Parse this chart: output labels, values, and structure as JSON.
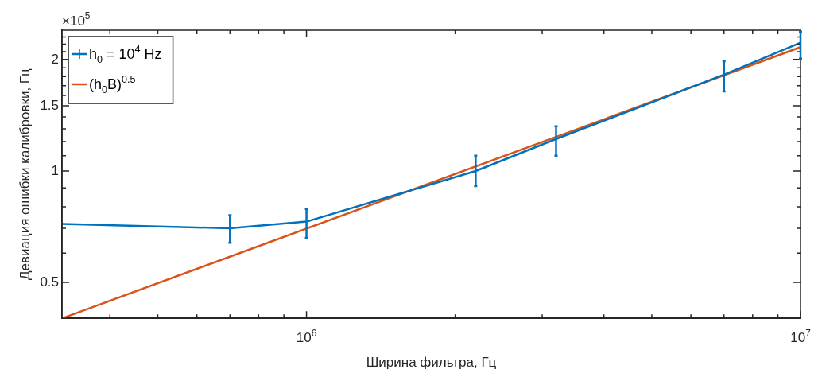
{
  "chart_data": {
    "type": "line",
    "xlabel": "Ширина фильтра, Гц",
    "ylabel": "Девиация ошибки калибровки, Гц",
    "annotations": [
      "×10$^{5}$"
    ],
    "log": "xy",
    "grid": false,
    "legend": "top left",
    "marker": "none",
    "line_style": "solid",
    "xlim": [
      320000,
      10000000
    ],
    "xticks": [
      {
        "value": 400000,
        "label": null
      },
      {
        "value": 500000,
        "label": null
      },
      {
        "value": 600000,
        "label": null
      },
      {
        "value": 700000,
        "label": null
      },
      {
        "value": 800000,
        "label": null
      },
      {
        "value": 900000,
        "label": null
      },
      {
        "value": 1000000,
        "label": "10$^{6}$"
      },
      {
        "value": 2000000,
        "label": null
      },
      {
        "value": 3000000,
        "label": null
      },
      {
        "value": 4000000,
        "label": null
      },
      {
        "value": 5000000,
        "label": null
      },
      {
        "value": 6000000,
        "label": null
      },
      {
        "value": 7000000,
        "label": null
      },
      {
        "value": 8000000,
        "label": null
      },
      {
        "value": 9000000,
        "label": null
      },
      {
        "value": 10000000,
        "label": "10$^{7}$"
      }
    ],
    "ylim": [
      0.4,
      2.4
    ],
    "yticks": [
      0.5,
      {
        "value": 0.6,
        "label": null
      },
      {
        "value": 0.7,
        "label": null
      },
      {
        "value": 0.8,
        "label": null
      },
      {
        "value": 0.9,
        "label": null
      },
      1,
      {
        "value": 1.1,
        "label": null
      },
      {
        "value": 1.2,
        "label": null
      },
      {
        "value": 1.3,
        "label": null
      },
      {
        "value": 1.4,
        "label": null
      },
      1.5,
      {
        "value": 1.6,
        "label": null
      },
      {
        "value": 1.7,
        "label": null
      },
      {
        "value": 1.8,
        "label": null
      },
      {
        "value": 1.9,
        "label": null
      },
      2,
      {
        "value": 2.1,
        "label": null
      },
      {
        "value": 2.2,
        "label": null
      },
      {
        "value": 2.3,
        "label": null
      }
    ],
    "series": [
      {
        "name": "h$_{0}$ = 10$^{4}$ Hz",
        "color": "#0072bd",
        "x": [
          320000,
          700000,
          1000000,
          2200000,
          3200000,
          7000000,
          10000000
        ],
        "values": [
          0.72,
          0.7,
          0.73,
          1.0,
          1.22,
          1.82,
          2.22
        ],
        "errors": [
          null,
          [
            0.64,
            0.76
          ],
          [
            0.66,
            0.79
          ],
          [
            0.91,
            1.1
          ],
          [
            1.1,
            1.32
          ],
          [
            1.64,
            1.98
          ],
          [
            2.01,
            2.38
          ]
        ]
      },
      {
        "name": "(h$_{0}$B)$^{0.5}$",
        "color": "#d95319",
        "x": [
          320000,
          10000000
        ],
        "values": [
          0.4,
          2.16
        ]
      }
    ]
  }
}
